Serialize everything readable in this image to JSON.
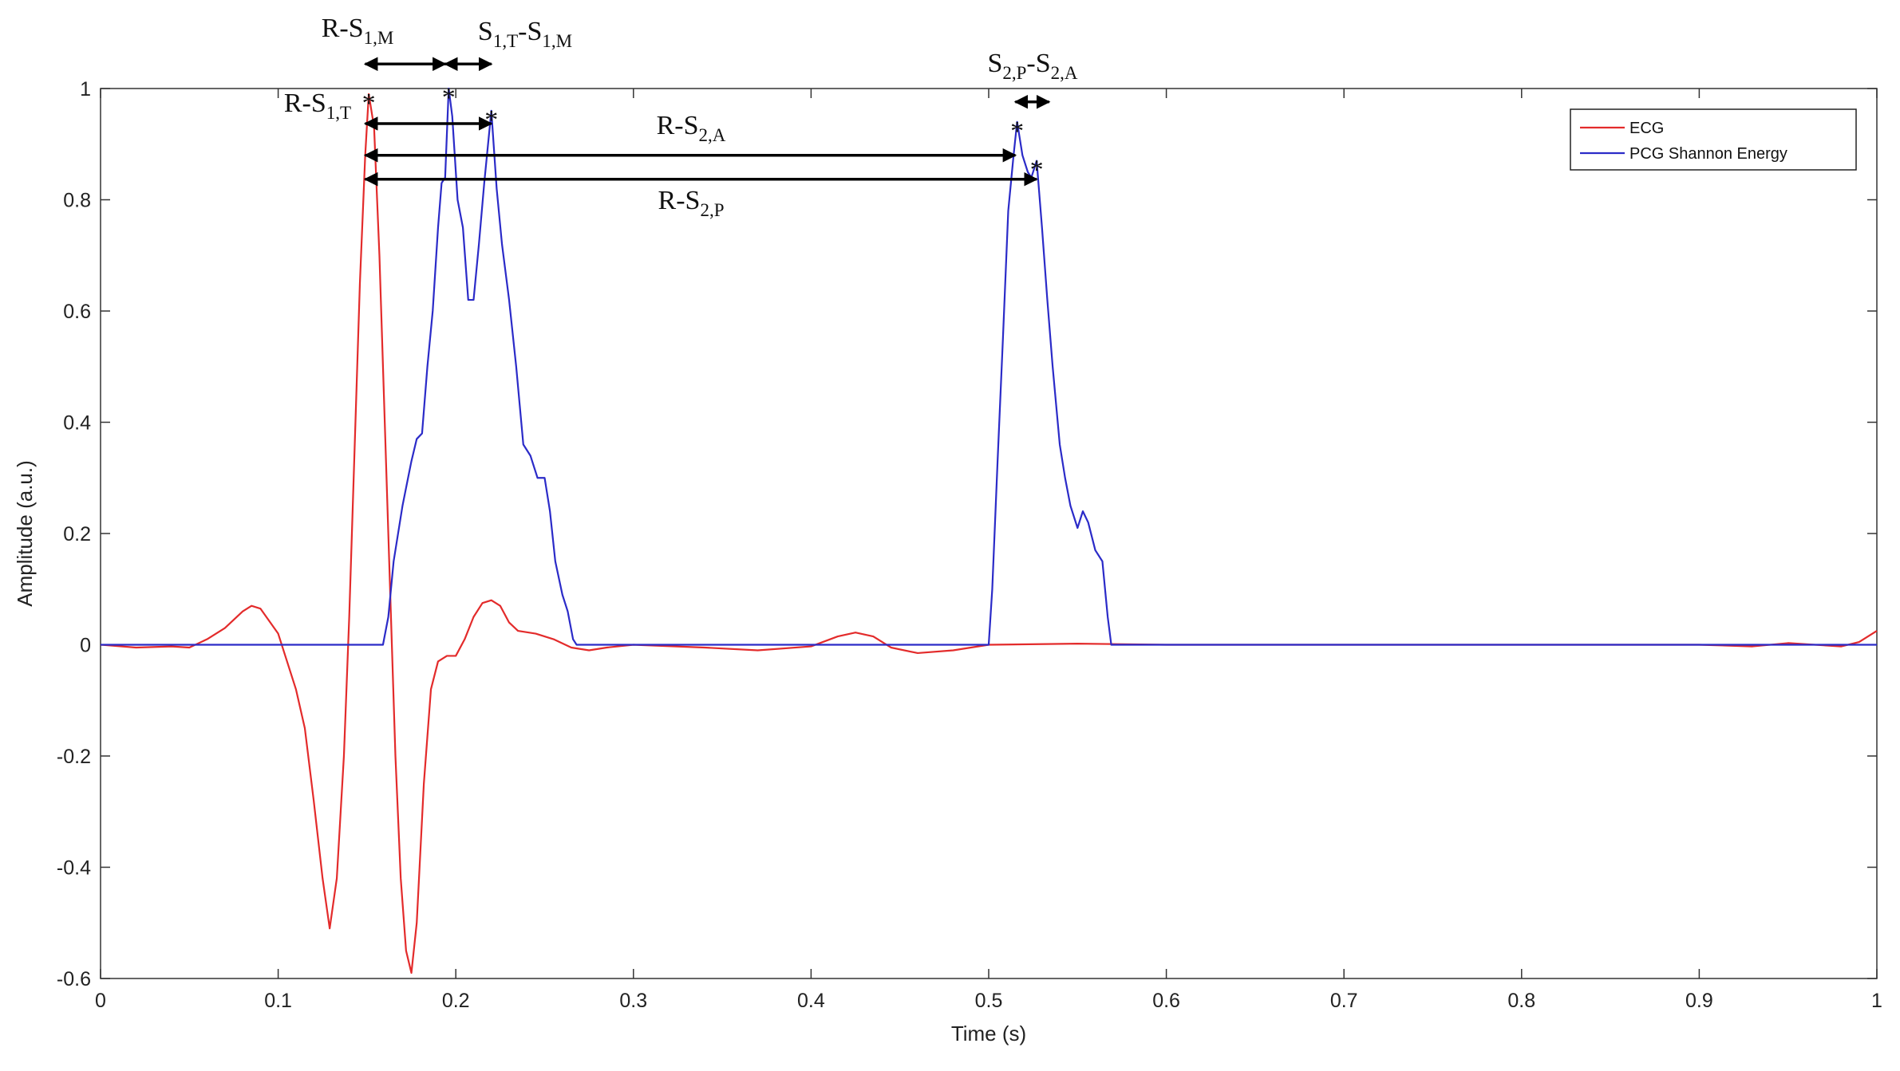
{
  "chart_data": {
    "type": "line",
    "xlabel": "Time (s)",
    "ylabel": "Amplitude (a.u.)",
    "xlim": [
      0,
      1
    ],
    "ylim": [
      -0.6,
      1
    ],
    "xticks": [
      0,
      0.1,
      0.2,
      0.3,
      0.4,
      0.5,
      0.6,
      0.7,
      0.8,
      0.9,
      1
    ],
    "yticks": [
      -0.6,
      -0.4,
      -0.2,
      0,
      0.2,
      0.4,
      0.6,
      0.8,
      1
    ],
    "grid": false,
    "legend": "upper right",
    "series": [
      {
        "name": "ECG",
        "color": "#e32b2b",
        "x": [
          0,
          0.02,
          0.04,
          0.05,
          0.06,
          0.07,
          0.08,
          0.085,
          0.09,
          0.1,
          0.105,
          0.11,
          0.115,
          0.12,
          0.125,
          0.129,
          0.133,
          0.137,
          0.14,
          0.143,
          0.146,
          0.149,
          0.151,
          0.154,
          0.157,
          0.16,
          0.163,
          0.166,
          0.169,
          0.172,
          0.175,
          0.178,
          0.182,
          0.186,
          0.19,
          0.195,
          0.2,
          0.205,
          0.21,
          0.215,
          0.22,
          0.225,
          0.23,
          0.235,
          0.245,
          0.255,
          0.265,
          0.275,
          0.285,
          0.3,
          0.34,
          0.37,
          0.4,
          0.415,
          0.425,
          0.435,
          0.445,
          0.46,
          0.48,
          0.5,
          0.55,
          0.6,
          0.7,
          0.8,
          0.9,
          0.93,
          0.95,
          0.98,
          0.99,
          1
        ],
        "values": [
          0,
          -0.005,
          -0.003,
          -0.005,
          0.01,
          0.03,
          0.06,
          0.07,
          0.065,
          0.02,
          -0.03,
          -0.08,
          -0.15,
          -0.28,
          -0.42,
          -0.51,
          -0.42,
          -0.2,
          0.05,
          0.35,
          0.65,
          0.88,
          0.99,
          0.93,
          0.7,
          0.4,
          0.1,
          -0.2,
          -0.42,
          -0.55,
          -0.59,
          -0.5,
          -0.25,
          -0.08,
          -0.03,
          -0.02,
          -0.02,
          0.01,
          0.05,
          0.075,
          0.08,
          0.07,
          0.04,
          0.025,
          0.02,
          0.01,
          -0.005,
          -0.01,
          -0.005,
          0,
          -0.005,
          -0.01,
          -0.003,
          0.015,
          0.022,
          0.015,
          -0.005,
          -0.015,
          -0.01,
          0,
          0.002,
          0,
          0,
          0,
          0,
          -0.003,
          0.003,
          -0.003,
          0.005,
          0.025
        ]
      },
      {
        "name": "PCG Shannon Energy",
        "color": "#2b2bc8",
        "x": [
          0,
          0.159,
          0.162,
          0.165,
          0.17,
          0.175,
          0.178,
          0.181,
          0.184,
          0.187,
          0.19,
          0.192,
          0.194,
          0.196,
          0.198,
          0.201,
          0.204,
          0.207,
          0.21,
          0.213,
          0.216,
          0.22,
          0.223,
          0.226,
          0.23,
          0.234,
          0.238,
          0.242,
          0.246,
          0.25,
          0.253,
          0.256,
          0.26,
          0.263,
          0.266,
          0.268,
          0.5,
          0.502,
          0.505,
          0.508,
          0.511,
          0.514,
          0.516,
          0.519,
          0.522,
          0.524,
          0.527,
          0.53,
          0.533,
          0.536,
          0.54,
          0.543,
          0.546,
          0.55,
          0.553,
          0.556,
          0.56,
          0.564,
          0.567,
          0.569,
          1
        ],
        "values": [
          0,
          0,
          0.05,
          0.15,
          0.25,
          0.33,
          0.37,
          0.38,
          0.5,
          0.6,
          0.75,
          0.83,
          0.84,
          1,
          0.95,
          0.8,
          0.75,
          0.62,
          0.62,
          0.72,
          0.83,
          0.96,
          0.82,
          0.72,
          0.62,
          0.5,
          0.36,
          0.34,
          0.3,
          0.3,
          0.24,
          0.15,
          0.09,
          0.06,
          0.01,
          0,
          0,
          0.1,
          0.33,
          0.55,
          0.78,
          0.88,
          0.94,
          0.88,
          0.85,
          0.84,
          0.87,
          0.75,
          0.62,
          0.5,
          0.36,
          0.3,
          0.25,
          0.21,
          0.24,
          0.22,
          0.17,
          0.15,
          0.05,
          0,
          0
        ]
      }
    ],
    "peak_markers": {
      "label": "*",
      "x": [
        0.151,
        0.196,
        0.22,
        0.516,
        0.527
      ],
      "y": [
        0.99,
        1,
        0.96,
        0.94,
        0.87
      ]
    },
    "annotations": [
      {
        "label": [
          "R-S",
          "1,M"
        ],
        "x": [
          0.149,
          0.194
        ],
        "y": 1.044
      },
      {
        "label": [
          "S",
          "1,T",
          "-S",
          "1,M"
        ],
        "x": [
          0.194,
          0.22
        ],
        "y": 1.044
      },
      {
        "label": [
          "R-S",
          "1,T"
        ],
        "x": [
          0.149,
          0.22
        ],
        "y": 0.937
      },
      {
        "label": [
          "R-S",
          "2,A"
        ],
        "x": [
          0.149,
          0.515
        ],
        "y": 0.88
      },
      {
        "label": [
          "R-S",
          "2,P"
        ],
        "x": [
          0.149,
          0.527
        ],
        "y": 0.837
      },
      {
        "label": [
          "S",
          "2,P",
          "-S",
          "2,A"
        ],
        "x": [
          0.515,
          0.534
        ],
        "y": 0.976
      }
    ]
  }
}
